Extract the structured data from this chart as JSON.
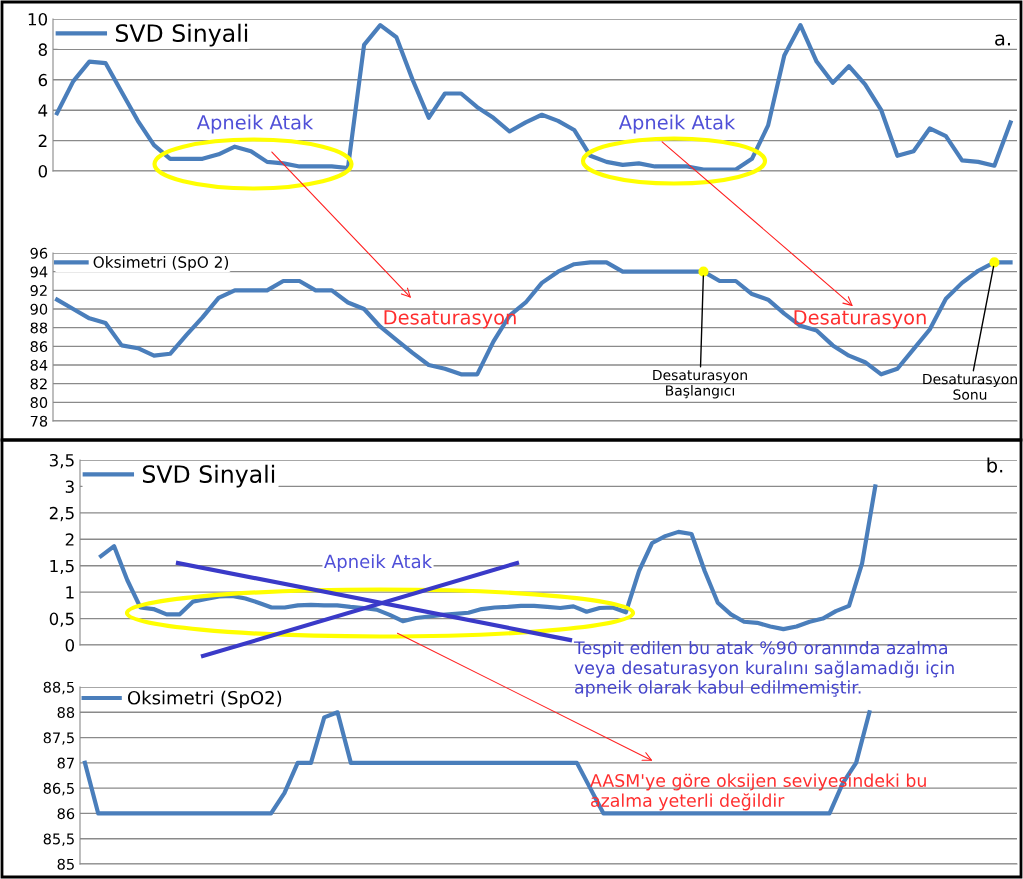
{
  "chart_data": [
    {
      "type": "line",
      "categories": [
        null,
        null,
        null,
        null,
        null,
        null,
        null,
        null,
        null,
        null,
        null,
        null,
        null,
        null,
        null,
        null,
        null,
        null,
        null,
        null,
        null,
        null,
        null,
        null,
        null,
        null,
        null,
        null,
        null,
        null,
        null,
        null,
        null,
        null,
        null,
        null,
        null,
        null,
        null,
        null,
        null,
        null,
        null,
        null,
        null,
        null,
        null,
        null,
        null,
        null,
        null,
        null,
        null,
        null,
        null,
        null,
        null,
        null,
        null,
        null
      ],
      "series": [
        {
          "name": "SVD Sinyali",
          "color": "#4a7ebb",
          "values": [
            3.8,
            5.9,
            7.2,
            7.1,
            5.2,
            3.3,
            1.7,
            0.8,
            0.8,
            0.8,
            1.1,
            1.6,
            1.3,
            0.6,
            0.5,
            0.3,
            0.3,
            0.3,
            0.2,
            8.3,
            9.6,
            8.8,
            6.0,
            3.5,
            5.1,
            5.1,
            4.2,
            3.5,
            2.6,
            3.2,
            3.7,
            3.3,
            2.7,
            1.0,
            0.6,
            0.4,
            0.5,
            0.3,
            0.3,
            0.3,
            0.1,
            0.1,
            0.1,
            0.8,
            3.0,
            7.6,
            9.6,
            7.2,
            5.8,
            6.9,
            5.7,
            4.0,
            1.0,
            1.3,
            2.8,
            2.3,
            0.7,
            0.6,
            0.35,
            3.2
          ]
        }
      ],
      "ylim": [
        0,
        10
      ],
      "yticks": [
        0,
        2,
        4,
        6,
        8,
        10
      ],
      "grid": "y",
      "legend": "top left",
      "tick_labels": "y",
      "annotations": [
        "Apneik Atak",
        "Apneik Atak",
        "a."
      ]
    },
    {
      "type": "line",
      "categories": [
        null,
        null,
        null,
        null,
        null,
        null,
        null,
        null,
        null,
        null,
        null,
        null,
        null,
        null,
        null,
        null,
        null,
        null,
        null,
        null,
        null,
        null,
        null,
        null,
        null,
        null,
        null,
        null,
        null,
        null,
        null,
        null,
        null,
        null,
        null,
        null,
        null,
        null,
        null,
        null,
        null,
        null,
        null,
        null,
        null,
        null,
        null,
        null,
        null,
        null,
        null,
        null,
        null,
        null,
        null,
        null,
        null,
        null,
        null,
        null
      ],
      "series": [
        {
          "name": "Oksimetri (SpO 2)",
          "color": "#4a7ebb",
          "values": [
            91,
            90,
            89,
            88.5,
            86.1,
            85.8,
            85,
            85.2,
            87.2,
            89.1,
            91.2,
            92,
            92,
            92,
            93,
            93,
            92,
            92,
            90.7,
            90,
            88.1,
            86.7,
            85.3,
            84,
            83.6,
            83,
            83,
            86.5,
            89.3,
            90.7,
            92.8,
            94,
            94.8,
            95,
            95,
            94,
            94,
            94,
            94,
            94,
            94,
            93,
            93,
            91.6,
            91,
            89.5,
            88.2,
            87.7,
            86.1,
            85,
            84.3,
            83,
            83.6,
            85.7,
            87.8,
            91.1,
            92.8,
            94.1,
            95,
            95
          ]
        },
        {
          "type": "scatter",
          "color": "#ffff00",
          "values": [
            null,
            null,
            null,
            null,
            null,
            null,
            null,
            null,
            null,
            null,
            null,
            null,
            null,
            null,
            null,
            null,
            null,
            null,
            null,
            null,
            null,
            null,
            null,
            null,
            null,
            null,
            null,
            null,
            null,
            null,
            null,
            null,
            null,
            null,
            null,
            null,
            null,
            null,
            null,
            null,
            94,
            null,
            null,
            null,
            null,
            null,
            null,
            null,
            null,
            null,
            null,
            null,
            null,
            null,
            null,
            null,
            null,
            null,
            95,
            null
          ]
        }
      ],
      "ylim": [
        78,
        96
      ],
      "yticks": [
        78,
        80,
        82,
        84,
        86,
        88,
        90,
        92,
        94,
        96
      ],
      "grid": "y",
      "legend": "top left",
      "tick_labels": "y",
      "annotations": [
        "Desaturasyon",
        "Desaturasyon",
        "Desaturasyon\nBaşlangıcı",
        "Desaturasyon\nSonu"
      ]
    },
    {
      "type": "line",
      "categories": [
        null,
        null,
        null,
        null,
        null,
        null,
        null,
        null,
        null,
        null,
        null,
        null,
        null,
        null,
        null,
        null,
        null,
        null,
        null,
        null,
        null,
        null,
        null,
        null,
        null,
        null,
        null,
        null,
        null,
        null,
        null,
        null,
        null,
        null,
        null,
        null,
        null,
        null,
        null,
        null,
        null,
        null,
        null,
        null,
        null,
        null,
        null,
        null,
        null,
        null,
        null,
        null,
        null,
        null,
        null,
        null,
        null,
        null,
        null,
        null
      ],
      "series": [
        {
          "name": "SVD Sinyali",
          "color": "#4a7ebb",
          "values": [
            1.68,
            1.87,
            1.23,
            0.71,
            0.68,
            0.58,
            0.58,
            0.82,
            0.87,
            0.92,
            0.93,
            0.88,
            0.8,
            0.71,
            0.71,
            0.75,
            0.76,
            0.75,
            0.75,
            0.72,
            0.7,
            0.67,
            0.57,
            0.45,
            0.51,
            0.54,
            0.57,
            0.59,
            0.61,
            0.68,
            0.71,
            0.72,
            0.74,
            0.74,
            0.72,
            0.7,
            0.73,
            0.63,
            0.7,
            0.71,
            0.62,
            1.4,
            1.93,
            2.06,
            2.14,
            2.1,
            1.4,
            0.8,
            0.58,
            0.44,
            0.42,
            0.35,
            0.3,
            0.35,
            0.44,
            0.5,
            0.64,
            0.74,
            1.55,
            3.0
          ]
        }
      ],
      "ylim": [
        0,
        3.5
      ],
      "yticks": [
        0,
        {
          "value": 0.5,
          "label": "0,5"
        },
        1,
        {
          "value": 1.5,
          "label": "1,5"
        },
        2,
        {
          "value": 2.5,
          "label": "2,5"
        },
        3,
        {
          "value": 3.5,
          "label": "3,5"
        }
      ],
      "grid": "y",
      "legend": "top left",
      "tick_labels": "y",
      "annotations": [
        "Apneik Atak",
        "b.",
        "Tespit edilen bu atak %90 oranında azalma\nveya desaturasyon kuralını sağlamadığı için\napneik olarak kabul edilmemiştir."
      ]
    },
    {
      "type": "line",
      "categories": [
        null,
        null,
        null,
        null,
        null,
        null,
        null,
        null,
        null,
        null,
        null,
        null,
        null,
        null,
        null,
        null,
        null,
        null,
        null,
        null,
        null,
        null,
        null,
        null,
        null,
        null,
        null,
        null,
        null,
        null,
        null,
        null,
        null,
        null,
        null,
        null,
        null,
        null,
        null,
        null,
        null,
        null,
        null,
        null,
        null,
        null,
        null,
        null,
        null,
        null,
        null,
        null,
        null,
        null,
        null,
        null,
        null,
        null,
        null,
        null
      ],
      "series": [
        {
          "name": "Oksimetri (SpO2)",
          "color": "#4a7ebb",
          "values": [
            87,
            86,
            86,
            86,
            86,
            86,
            86,
            86,
            86,
            86,
            86,
            86,
            86,
            86,
            86,
            86.4,
            87,
            87,
            87.9,
            88,
            87,
            87,
            87,
            87,
            87,
            87,
            87,
            87,
            87,
            87,
            87,
            87,
            87,
            87,
            87,
            87,
            87,
            87,
            86.5,
            86,
            86,
            86,
            86,
            86,
            86,
            86,
            86,
            86,
            86,
            86,
            86,
            86,
            86,
            86,
            86,
            86,
            86,
            86.6,
            87,
            88
          ]
        }
      ],
      "ylim": [
        85,
        88.5
      ],
      "yticks": [
        85,
        {
          "value": 85.5,
          "label": "85,5"
        },
        86,
        {
          "value": 86.5,
          "label": "86,5"
        },
        87,
        {
          "value": 87.5,
          "label": "87,5"
        },
        88,
        {
          "value": 88.5,
          "label": "88,5"
        }
      ],
      "grid": "y",
      "legend": "top left",
      "tick_labels": "y",
      "annotations": [
        "AASM'ye göre oksijen seviyesindeki bu\nazalma yeterli değildir"
      ]
    }
  ]
}
